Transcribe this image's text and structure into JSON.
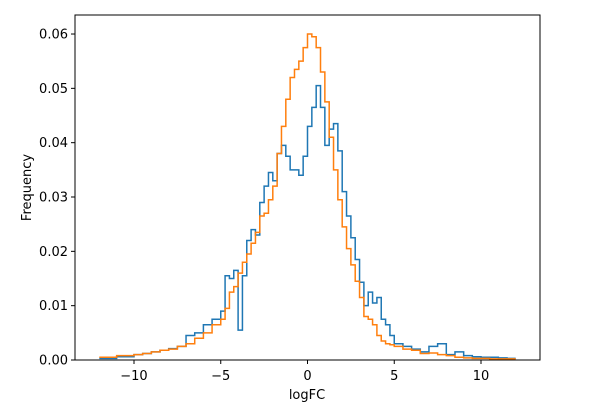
{
  "chart_data": {
    "type": "histogram",
    "title": "",
    "xlabel": "logFC",
    "ylabel": "Frequency",
    "xlim": [
      -13.4,
      13.4
    ],
    "ylim": [
      0,
      0.0635
    ],
    "xticks": [
      -10,
      -5,
      0,
      5,
      10
    ],
    "xtick_labels": [
      "−10",
      "−5",
      "0",
      "5",
      "10"
    ],
    "yticks": [
      0.0,
      0.01,
      0.02,
      0.03,
      0.04,
      0.05,
      0.06
    ],
    "ytick_labels": [
      "0.00",
      "0.01",
      "0.02",
      "0.03",
      "0.04",
      "0.05",
      "0.06"
    ],
    "grid": false,
    "legend": false,
    "colors": {
      "series1": "#1f77b4",
      "series2": "#ff7f0e"
    },
    "series": [
      {
        "color": "#1f77b4",
        "bin_edges": [
          -12,
          -11,
          -10,
          -9.5,
          -9,
          -8.5,
          -8,
          -7.5,
          -7,
          -6.5,
          -6,
          -5.5,
          -5,
          -4.75,
          -4.5,
          -4.25,
          -4,
          -3.75,
          -3.5,
          -3.25,
          -3,
          -2.75,
          -2.5,
          -2.25,
          -2,
          -1.75,
          -1.5,
          -1.25,
          -1,
          -0.75,
          -0.5,
          -0.25,
          0,
          0.25,
          0.5,
          0.75,
          1,
          1.25,
          1.5,
          1.75,
          2,
          2.25,
          2.5,
          2.75,
          3,
          3.25,
          3.5,
          3.75,
          4,
          4.25,
          4.5,
          4.75,
          5,
          5.5,
          6,
          6.5,
          7,
          7.5,
          8,
          8.5,
          9,
          9.5,
          10,
          10.5,
          11,
          11.5,
          12
        ],
        "values": [
          0.0003,
          0.0006,
          0.001,
          0.0012,
          0.0015,
          0.0018,
          0.0021,
          0.0025,
          0.0045,
          0.005,
          0.0065,
          0.0075,
          0.009,
          0.0155,
          0.015,
          0.0165,
          0.0055,
          0.0155,
          0.022,
          0.024,
          0.023,
          0.029,
          0.032,
          0.0345,
          0.033,
          0.038,
          0.0395,
          0.0375,
          0.035,
          0.035,
          0.034,
          0.0375,
          0.043,
          0.0465,
          0.0505,
          0.0465,
          0.0395,
          0.0425,
          0.0435,
          0.0385,
          0.031,
          0.0265,
          0.0225,
          0.0185,
          0.0143,
          0.01,
          0.0125,
          0.0105,
          0.0115,
          0.0075,
          0.0065,
          0.0045,
          0.003,
          0.0025,
          0.002,
          0.0015,
          0.0025,
          0.003,
          0.001,
          0.0015,
          0.0008,
          0.0006,
          0.0005,
          0.0005,
          0.0004,
          0.0003
        ]
      },
      {
        "color": "#ff7f0e",
        "bin_edges": [
          -12,
          -11,
          -10,
          -9.5,
          -9,
          -8.5,
          -8,
          -7.5,
          -7,
          -6.5,
          -6,
          -5.5,
          -5,
          -4.75,
          -4.5,
          -4.25,
          -4,
          -3.75,
          -3.5,
          -3.25,
          -3,
          -2.75,
          -2.5,
          -2.25,
          -2,
          -1.75,
          -1.5,
          -1.25,
          -1,
          -0.75,
          -0.5,
          -0.25,
          0,
          0.25,
          0.5,
          0.75,
          1,
          1.25,
          1.5,
          1.75,
          2,
          2.25,
          2.5,
          2.75,
          3,
          3.25,
          3.5,
          3.75,
          4,
          4.25,
          4.5,
          4.75,
          5,
          5.5,
          6,
          6.5,
          7,
          7.5,
          8,
          8.5,
          9,
          9.5,
          10,
          10.5,
          11,
          11.5,
          12
        ],
        "values": [
          0.0005,
          0.0008,
          0.001,
          0.0012,
          0.0015,
          0.0018,
          0.002,
          0.0025,
          0.003,
          0.004,
          0.005,
          0.0065,
          0.0075,
          0.0095,
          0.0125,
          0.0135,
          0.016,
          0.018,
          0.0195,
          0.0215,
          0.0235,
          0.0265,
          0.027,
          0.0295,
          0.032,
          0.038,
          0.043,
          0.048,
          0.052,
          0.0535,
          0.055,
          0.0575,
          0.06,
          0.0595,
          0.0575,
          0.053,
          0.0475,
          0.041,
          0.035,
          0.0295,
          0.0245,
          0.0205,
          0.0175,
          0.0145,
          0.0115,
          0.008,
          0.0075,
          0.0065,
          0.0045,
          0.0035,
          0.003,
          0.0028,
          0.0025,
          0.002,
          0.0018,
          0.0012,
          0.0013,
          0.001,
          0.0008,
          0.0005,
          0.0004,
          0.0003,
          0.0003,
          0.0002,
          0.0002,
          0.0002
        ]
      }
    ]
  }
}
